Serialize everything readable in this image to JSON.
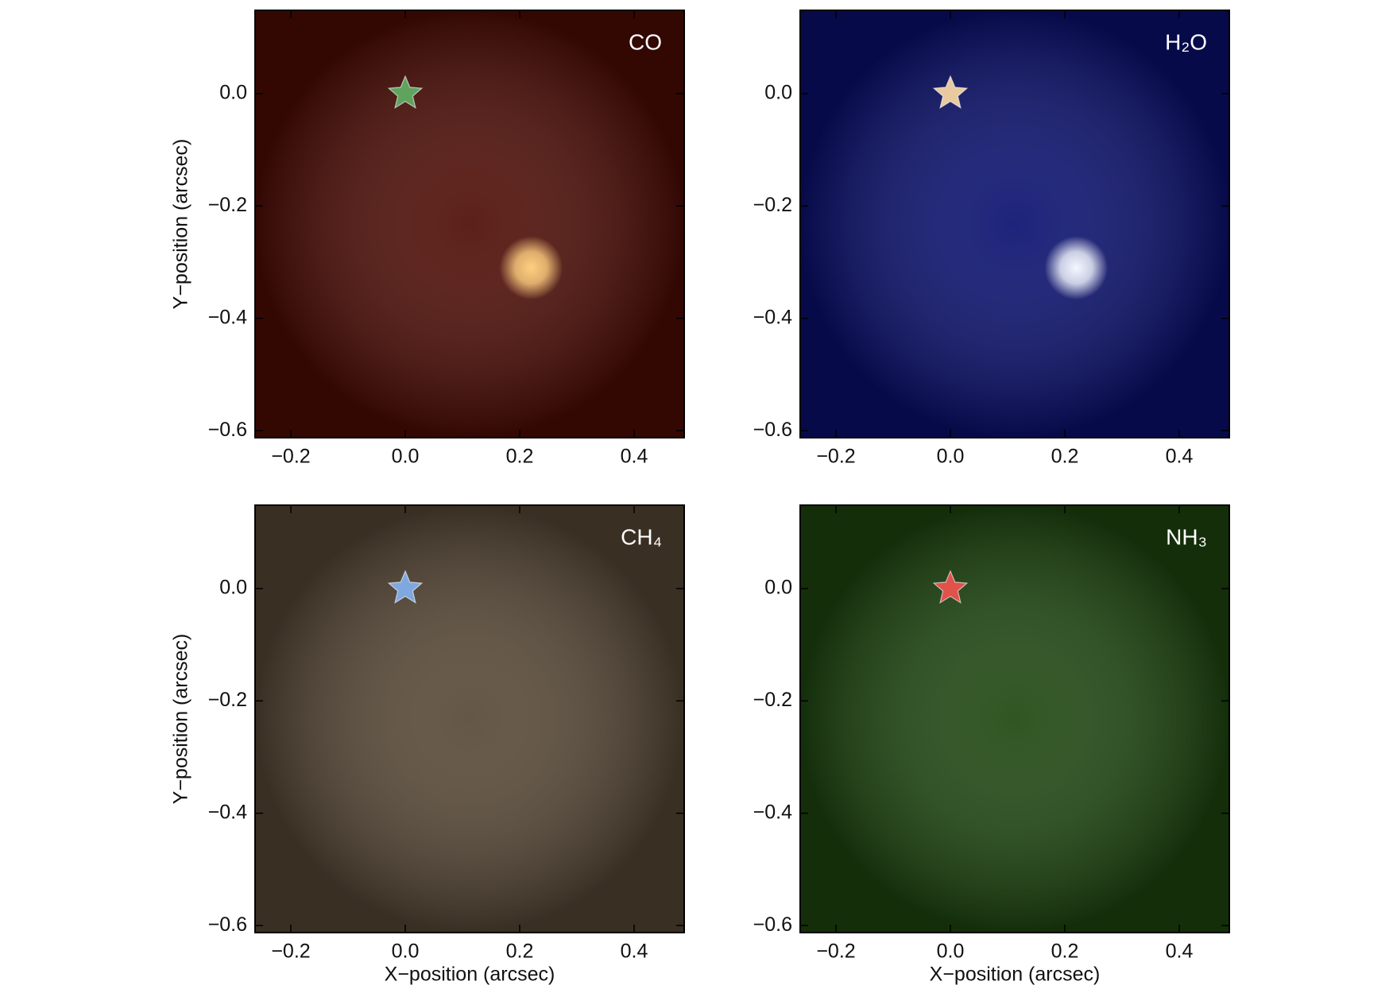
{
  "chart_data": [
    {
      "type": "image",
      "title": "CO",
      "ylabel": "Y−position (arcsec)",
      "background": "#4e0c05",
      "xlim": [
        -0.2625,
        0.4875
      ],
      "ylim": [
        -0.6125,
        0.1484
      ],
      "xticks": [
        {
          "value": -0.2,
          "label": "−0.2"
        },
        {
          "value": 0,
          "label": "0.0"
        },
        {
          "value": 0.2,
          "label": "0.2"
        },
        {
          "value": 0.4,
          "label": "0.4"
        }
      ],
      "yticks": [
        {
          "value": 0,
          "label": "0.0"
        },
        {
          "value": -0.2,
          "label": "−0.2"
        },
        {
          "value": -0.4,
          "label": "−0.4"
        },
        {
          "value": -0.6,
          "label": "−0.6"
        }
      ],
      "star": {
        "x": 0,
        "y": 0,
        "color": "#5fa35f"
      },
      "source": {
        "x": 0.22,
        "y": -0.31,
        "color": "#ffcf80"
      }
    },
    {
      "type": "image",
      "title": "H₂O",
      "background": "#0a1070",
      "xlim": [
        -0.2625,
        0.4875
      ],
      "ylim": [
        -0.6125,
        0.1484
      ],
      "xticks": [
        {
          "value": -0.2,
          "label": "−0.2"
        },
        {
          "value": 0,
          "label": "0.0"
        },
        {
          "value": 0.2,
          "label": "0.2"
        },
        {
          "value": 0.4,
          "label": "0.4"
        }
      ],
      "yticks": [
        {
          "value": 0,
          "label": "0.0"
        },
        {
          "value": -0.2,
          "label": "−0.2"
        },
        {
          "value": -0.4,
          "label": "−0.4"
        },
        {
          "value": -0.6,
          "label": "−0.6"
        }
      ],
      "star": {
        "x": 0,
        "y": 0,
        "color": "#e8c9a0"
      },
      "source": {
        "x": 0.22,
        "y": -0.31,
        "color": "#f4f8ff"
      }
    },
    {
      "type": "image",
      "title": "CH₄",
      "xlabel": "X−position (arcsec)",
      "ylabel": "Y−position (arcsec)",
      "background": "#574836",
      "xlim": [
        -0.2625,
        0.4875
      ],
      "ylim": [
        -0.6125,
        0.1484
      ],
      "xticks": [
        {
          "value": -0.2,
          "label": "−0.2"
        },
        {
          "value": 0,
          "label": "0.0"
        },
        {
          "value": 0.2,
          "label": "0.2"
        },
        {
          "value": 0.4,
          "label": "0.4"
        }
      ],
      "yticks": [
        {
          "value": 0,
          "label": "0.0"
        },
        {
          "value": -0.2,
          "label": "−0.2"
        },
        {
          "value": -0.4,
          "label": "−0.4"
        },
        {
          "value": -0.6,
          "label": "−0.6"
        }
      ],
      "star": {
        "x": 0,
        "y": 0,
        "color": "#7fa8e0"
      }
    },
    {
      "type": "image",
      "title": "NH₃",
      "xlabel": "X−position (arcsec)",
      "background": "#1e4710",
      "xlim": [
        -0.2625,
        0.4875
      ],
      "ylim": [
        -0.6125,
        0.1484
      ],
      "xticks": [
        {
          "value": -0.2,
          "label": "−0.2"
        },
        {
          "value": 0,
          "label": "0.0"
        },
        {
          "value": 0.2,
          "label": "0.2"
        },
        {
          "value": 0.4,
          "label": "0.4"
        }
      ],
      "yticks": [
        {
          "value": 0,
          "label": "0.0"
        },
        {
          "value": -0.2,
          "label": "−0.2"
        },
        {
          "value": -0.4,
          "label": "−0.4"
        },
        {
          "value": -0.6,
          "label": "−0.6"
        }
      ],
      "star": {
        "x": 0,
        "y": 0,
        "color": "#e0524a"
      }
    }
  ]
}
